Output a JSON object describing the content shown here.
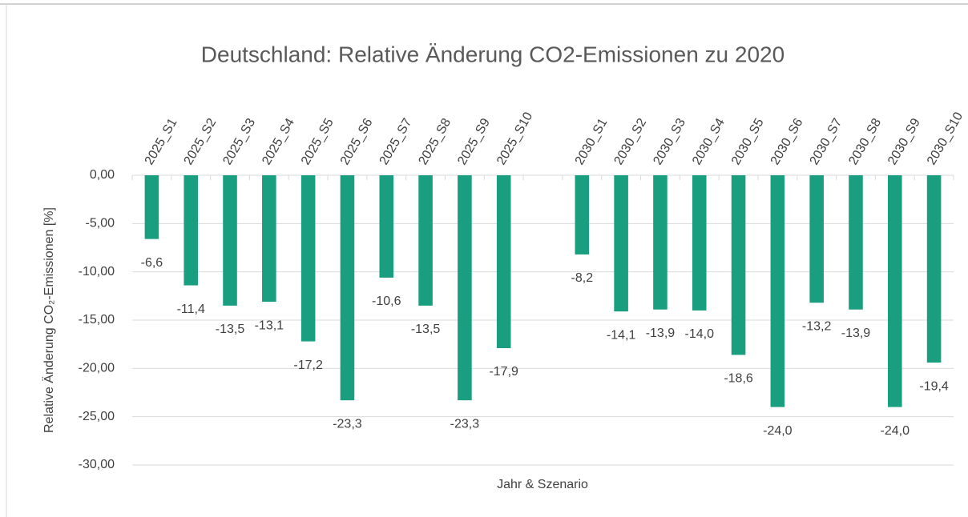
{
  "chart_data": {
    "type": "bar",
    "title": "Deutschland: Relative Änderung CO2-Emissionen zu 2020",
    "x_label": "Jahr & Szenario",
    "y_label": "Relative Änderung CO₂-Emissionen [%]",
    "categories": [
      "2025_S1",
      "2025_S2",
      "2025_S3",
      "2025_S4",
      "2025_S5",
      "2025_S6",
      "2025_S7",
      "2025_S8",
      "2025_S9",
      "2025_S10",
      null,
      "2030_S1",
      "2030_S2",
      "2030_S3",
      "2030_S4",
      "2030_S5",
      "2030_S6",
      "2030_S7",
      "2030_S8",
      "2030_S9",
      "2030_S10"
    ],
    "values": [
      -6.6,
      -11.4,
      -13.5,
      -13.1,
      -17.2,
      -23.3,
      -10.6,
      -13.5,
      -23.3,
      -17.9,
      null,
      -8.2,
      -14.1,
      -13.9,
      -14.0,
      -18.6,
      -24.0,
      -13.2,
      -13.9,
      -24.0,
      -19.4
    ],
    "value_labels": [
      "-6,6",
      "-11,4",
      "-13,5",
      "-13,1",
      "-17,2",
      "-23,3",
      "-10,6",
      "-13,5",
      "-23,3",
      "-17,9",
      null,
      "-8,2",
      "-14,1",
      "-13,9",
      "-14,0",
      "-18,6",
      "-24,0",
      "-13,2",
      "-13,9",
      "-24,0",
      "-19,4"
    ],
    "color": "#1a9e80",
    "ylim": [
      -30,
      0
    ],
    "yticks": [
      {
        "value": 0,
        "label": "0,00"
      },
      {
        "value": -5,
        "label": "-5,00"
      },
      {
        "value": -10,
        "label": "-10,00"
      },
      {
        "value": -15,
        "label": "-15,00"
      },
      {
        "value": -20,
        "label": "-20,00"
      },
      {
        "value": -25,
        "label": "-25,00"
      },
      {
        "value": -30,
        "label": "-30,00"
      }
    ],
    "grid": true
  }
}
